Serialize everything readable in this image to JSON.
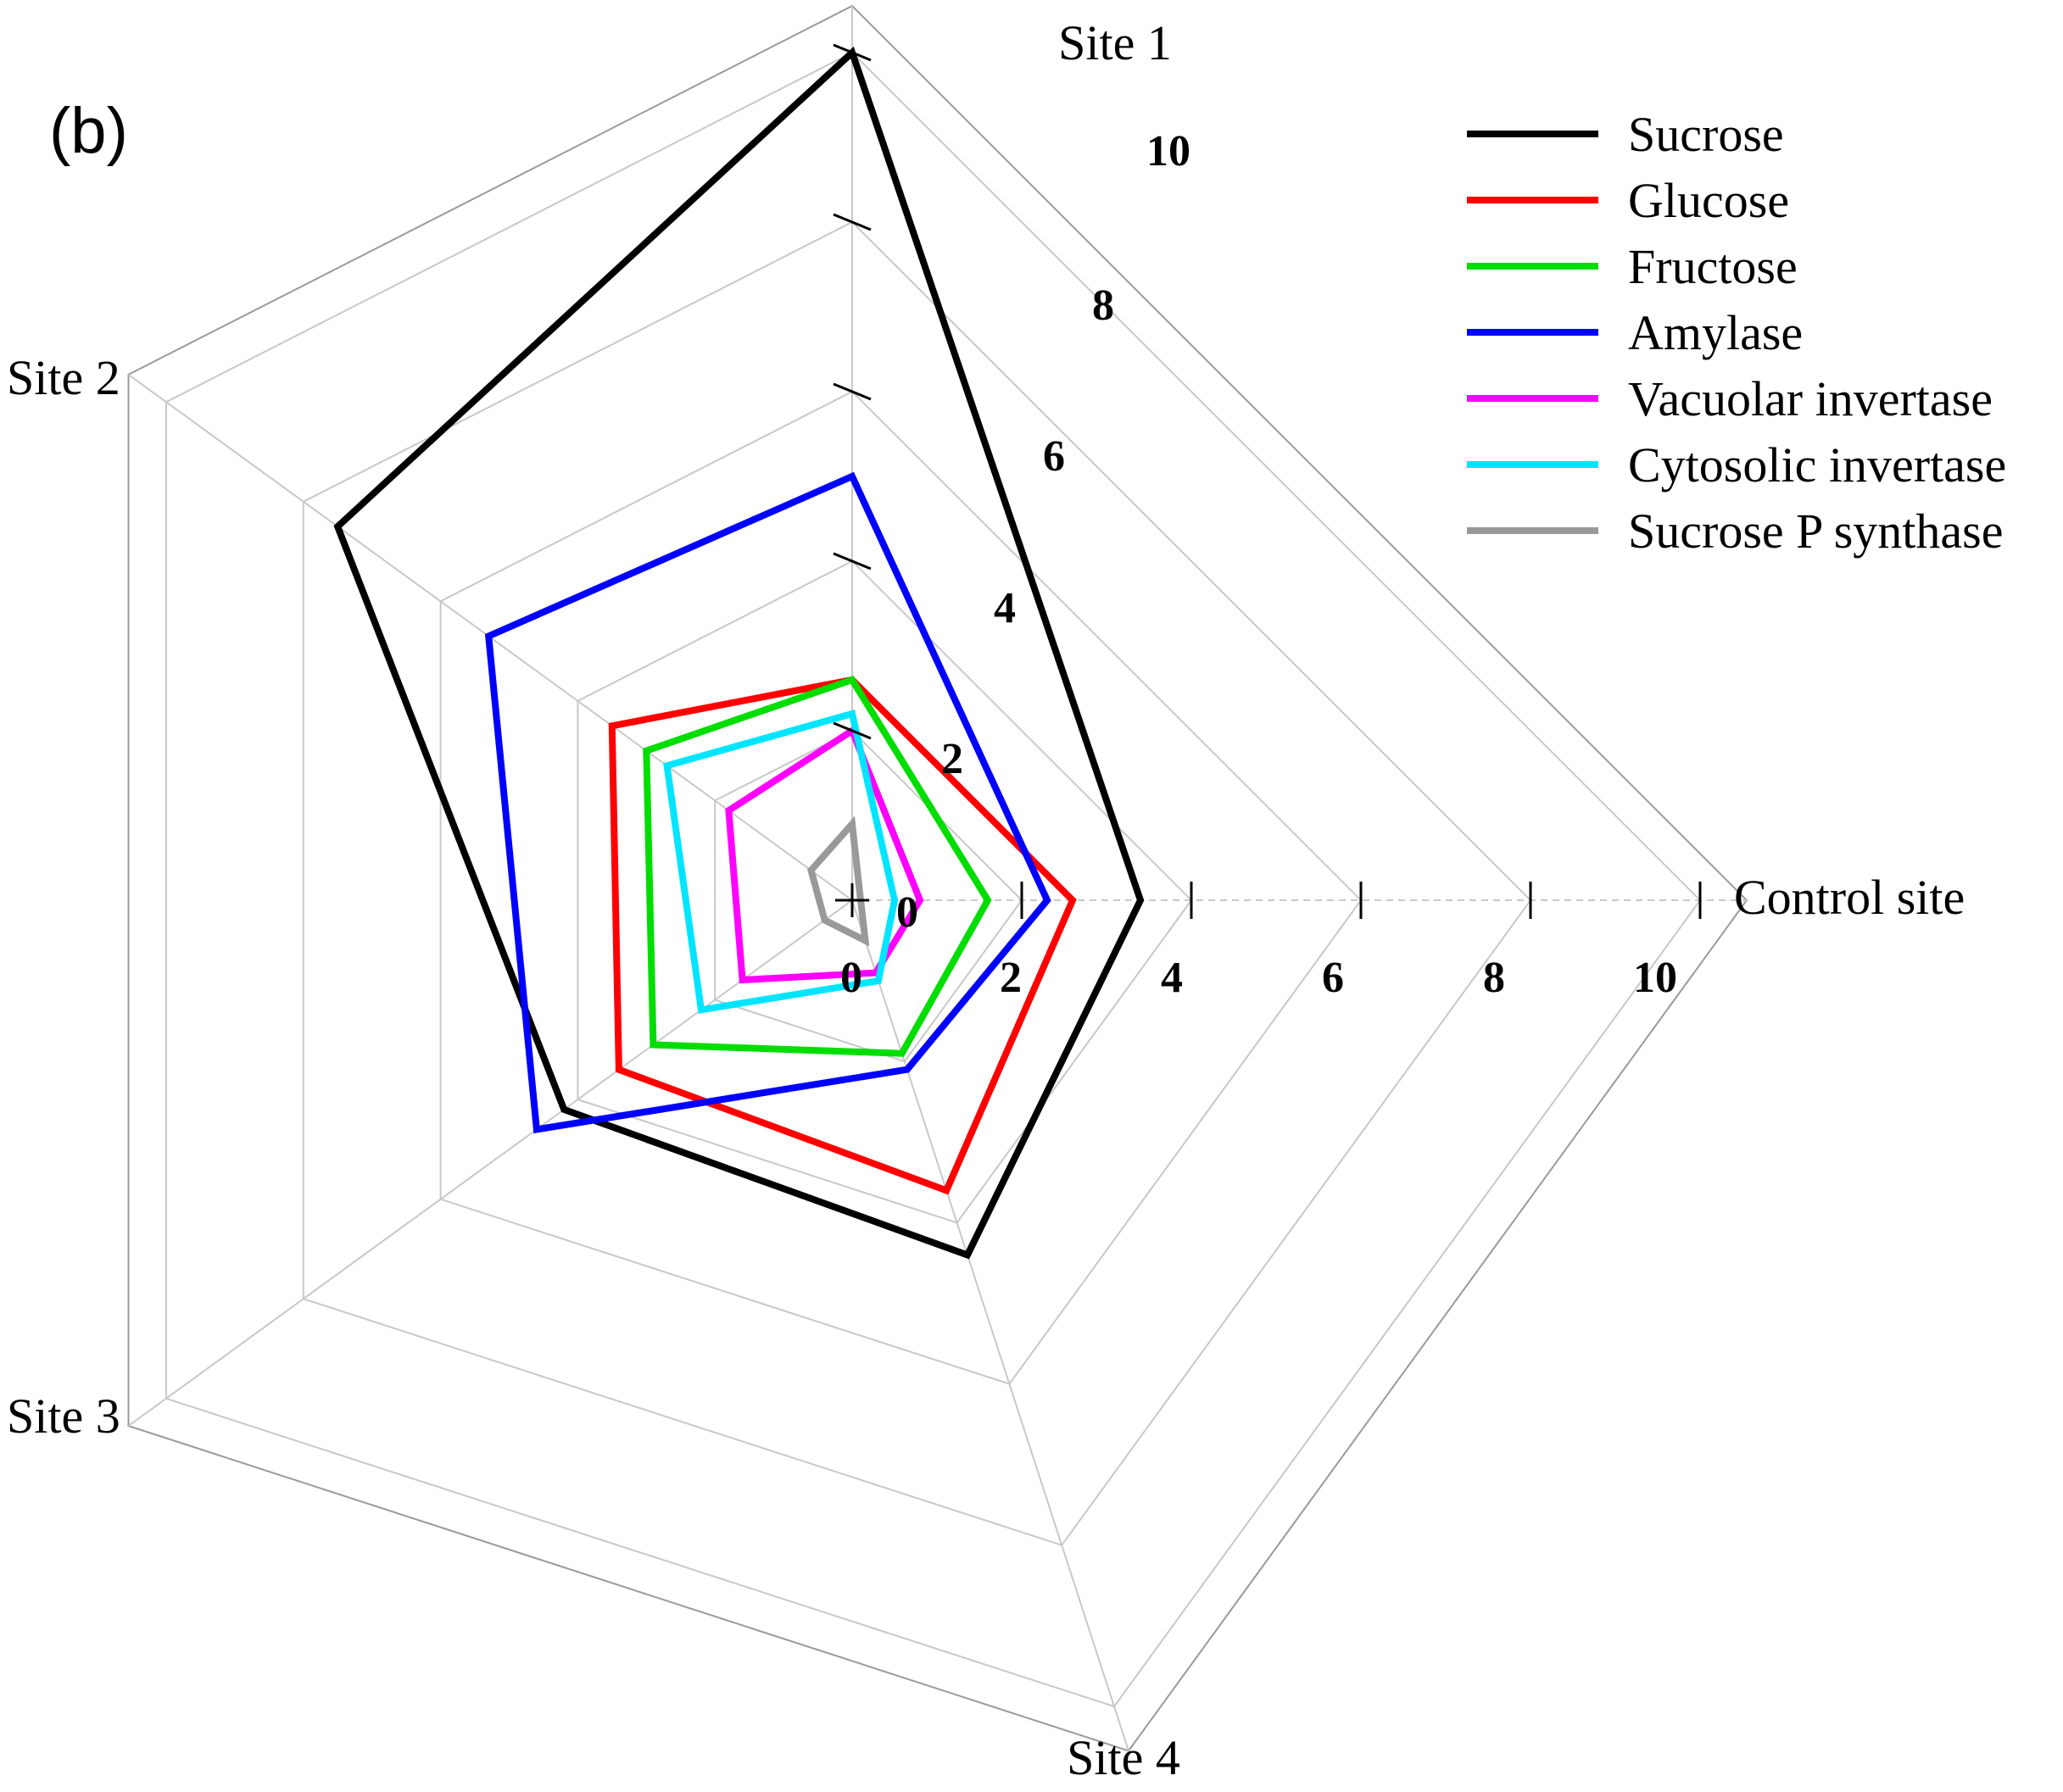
{
  "panel_label": "(b)",
  "chart_data": {
    "type": "radar",
    "axes": [
      "Site 1",
      "Control site",
      "Site 4",
      "Site 3",
      "Site 2"
    ],
    "range": [
      0,
      10
    ],
    "tick_values": [
      0,
      2,
      4,
      6,
      8,
      10
    ],
    "ticks": {
      "site1": [
        "2",
        "4",
        "6",
        "8",
        "10"
      ],
      "control": [
        "0",
        "2",
        "4",
        "6",
        "8",
        "10"
      ],
      "center": "0"
    },
    "series": [
      {
        "name": "Sucrose",
        "color": "#000000",
        "values": [
          10.0,
          3.4,
          4.4,
          4.2,
          7.5
        ]
      },
      {
        "name": "Glucose",
        "color": "#ff0000",
        "values": [
          2.6,
          2.6,
          3.6,
          3.4,
          3.5
        ]
      },
      {
        "name": "Fructose",
        "color": "#00dd00",
        "values": [
          2.6,
          1.6,
          1.9,
          2.9,
          3.0
        ]
      },
      {
        "name": "Amylase",
        "color": "#0000ff",
        "values": [
          5.0,
          2.3,
          2.1,
          4.6,
          5.3
        ]
      },
      {
        "name": "Vacuolar invertase",
        "color": "#ff00ff",
        "values": [
          2.0,
          0.8,
          0.9,
          1.6,
          1.8
        ]
      },
      {
        "name": "Cytosolic invertase",
        "color": "#00e5ff",
        "values": [
          2.2,
          0.5,
          1.0,
          2.2,
          2.7
        ]
      },
      {
        "name": "Sucrose P synthase",
        "color": "#999999",
        "values": [
          0.9,
          0.1,
          0.5,
          0.4,
          0.6
        ]
      }
    ]
  }
}
